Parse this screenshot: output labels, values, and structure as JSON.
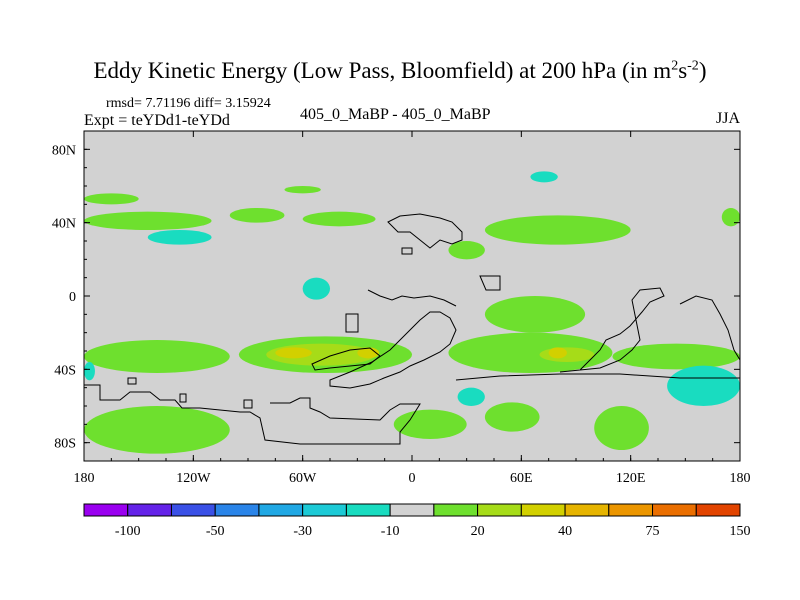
{
  "header": {
    "title_main": "Eddy Kinetic Energy (Low Pass, Bloomfield) at 200 hPa (in m",
    "title_sup1": "2",
    "title_mid": "s",
    "title_sup2": "-2",
    "title_end": ")",
    "rmsd_line": "rmsd= 7.71196 diff= 3.15924",
    "expt_line": "Expt = teYDd1-teYDd",
    "center_label": "405_0_MaBP - 405_0_MaBP",
    "season": "JJA"
  },
  "chart_data": {
    "type": "heatmap",
    "projection": "cylindrical-equidistant",
    "xlim": [
      -180,
      180
    ],
    "ylim": [
      -90,
      90
    ],
    "x_ticks": [
      {
        "value": -180,
        "label": "180"
      },
      {
        "value": -120,
        "label": "120W"
      },
      {
        "value": -60,
        "label": "60W"
      },
      {
        "value": 0,
        "label": "0"
      },
      {
        "value": 60,
        "label": "60E"
      },
      {
        "value": 120,
        "label": "120E"
      },
      {
        "value": 180,
        "label": "180"
      }
    ],
    "y_ticks": [
      {
        "value": 80,
        "label": "80N"
      },
      {
        "value": 40,
        "label": "40N"
      },
      {
        "value": 0,
        "label": "0"
      },
      {
        "value": -40,
        "label": "40S"
      },
      {
        "value": -80,
        "label": "80S"
      }
    ],
    "background_color": "#d2d2d2",
    "colorbar": {
      "colors": [
        "#9a00f0",
        "#6422e8",
        "#3a50e6",
        "#2a84e8",
        "#20a8e4",
        "#1ccad6",
        "#19dcc0",
        "#d2d2d2",
        "#6ee02e",
        "#a6dc18",
        "#d2d000",
        "#e6b400",
        "#ec9600",
        "#ea6e00",
        "#e24400"
      ],
      "labels": [
        {
          "label": "-100",
          "after_box": 1
        },
        {
          "label": "-50",
          "after_box": 3
        },
        {
          "label": "-30",
          "after_box": 5
        },
        {
          "label": "-10",
          "after_box": 7
        },
        {
          "label": "20",
          "after_box": 9
        },
        {
          "label": "40",
          "after_box": 11
        },
        {
          "label": "75",
          "after_box": 13
        },
        {
          "label": "150",
          "after_box": 15
        }
      ]
    },
    "anomaly_regions": [
      {
        "sign": "positive",
        "level": "green",
        "color": "#6ee02e",
        "lon": [
          -180,
          -110
        ],
        "lat": [
          36,
          46
        ]
      },
      {
        "sign": "positive",
        "level": "green",
        "color": "#6ee02e",
        "lon": [
          -100,
          -70
        ],
        "lat": [
          40,
          48
        ]
      },
      {
        "sign": "positive",
        "level": "green",
        "color": "#6ee02e",
        "lon": [
          -60,
          -20
        ],
        "lat": [
          38,
          46
        ]
      },
      {
        "sign": "positive",
        "level": "green",
        "color": "#6ee02e",
        "lon": [
          20,
          40
        ],
        "lat": [
          20,
          30
        ]
      },
      {
        "sign": "positive",
        "level": "green",
        "color": "#6ee02e",
        "lon": [
          40,
          120
        ],
        "lat": [
          28,
          44
        ]
      },
      {
        "sign": "positive",
        "level": "green",
        "color": "#6ee02e",
        "lon": [
          170,
          180
        ],
        "lat": [
          38,
          48
        ]
      },
      {
        "sign": "positive",
        "level": "green",
        "color": "#6ee02e",
        "lon": [
          -180,
          -150
        ],
        "lat": [
          50,
          56
        ]
      },
      {
        "sign": "positive",
        "level": "green",
        "color": "#6ee02e",
        "lon": [
          -70,
          -50
        ],
        "lat": [
          56,
          60
        ]
      },
      {
        "sign": "negative",
        "level": "teal",
        "color": "#19dcc0",
        "lon": [
          -145,
          -110
        ],
        "lat": [
          28,
          36
        ]
      },
      {
        "sign": "negative",
        "level": "teal",
        "color": "#19dcc0",
        "lon": [
          65,
          80
        ],
        "lat": [
          62,
          68
        ]
      },
      {
        "sign": "negative",
        "level": "teal",
        "color": "#19dcc0",
        "lon": [
          -60,
          -45
        ],
        "lat": [
          -2,
          10
        ]
      },
      {
        "sign": "positive",
        "level": "green",
        "color": "#6ee02e",
        "lon": [
          40,
          95
        ],
        "lat": [
          -20,
          0
        ]
      },
      {
        "sign": "positive",
        "level": "green",
        "color": "#6ee02e",
        "lon": [
          -180,
          -100
        ],
        "lat": [
          -42,
          -24
        ]
      },
      {
        "sign": "positive",
        "level": "green",
        "color": "#6ee02e",
        "lon": [
          -95,
          0
        ],
        "lat": [
          -42,
          -22
        ]
      },
      {
        "sign": "positive",
        "level": "green",
        "color": "#6ee02e",
        "lon": [
          20,
          110
        ],
        "lat": [
          -42,
          -20
        ]
      },
      {
        "sign": "positive",
        "level": "green",
        "color": "#6ee02e",
        "lon": [
          110,
          180
        ],
        "lat": [
          -40,
          -26
        ]
      },
      {
        "sign": "positive",
        "level": "light-green",
        "color": "#a6dc18",
        "lon": [
          -80,
          -20
        ],
        "lat": [
          -38,
          -26
        ]
      },
      {
        "sign": "positive",
        "level": "light-green",
        "color": "#a6dc18",
        "lon": [
          70,
          100
        ],
        "lat": [
          -36,
          -28
        ]
      },
      {
        "sign": "positive",
        "level": "yellow",
        "color": "#d2d000",
        "lon": [
          -75,
          -55
        ],
        "lat": [
          -34,
          -28
        ]
      },
      {
        "sign": "positive",
        "level": "yellow",
        "color": "#d2d000",
        "lon": [
          -30,
          -18
        ],
        "lat": [
          -34,
          -28
        ]
      },
      {
        "sign": "positive",
        "level": "yellow",
        "color": "#d2d000",
        "lon": [
          75,
          85
        ],
        "lat": [
          -34,
          -28
        ]
      },
      {
        "sign": "negative",
        "level": "teal",
        "color": "#19dcc0",
        "lon": [
          -180,
          -174
        ],
        "lat": [
          -46,
          -36
        ]
      },
      {
        "sign": "negative",
        "level": "teal",
        "color": "#19dcc0",
        "lon": [
          140,
          180
        ],
        "lat": [
          -60,
          -38
        ]
      },
      {
        "sign": "negative",
        "level": "teal",
        "color": "#19dcc0",
        "lon": [
          25,
          40
        ],
        "lat": [
          -60,
          -50
        ]
      },
      {
        "sign": "positive",
        "level": "green",
        "color": "#6ee02e",
        "lon": [
          -180,
          -100
        ],
        "lat": [
          -86,
          -60
        ]
      },
      {
        "sign": "positive",
        "level": "green",
        "color": "#6ee02e",
        "lon": [
          -10,
          30
        ],
        "lat": [
          -78,
          -62
        ]
      },
      {
        "sign": "positive",
        "level": "green",
        "color": "#6ee02e",
        "lon": [
          40,
          70
        ],
        "lat": [
          -74,
          -58
        ]
      },
      {
        "sign": "positive",
        "level": "green",
        "color": "#6ee02e",
        "lon": [
          100,
          130
        ],
        "lat": [
          -84,
          -60
        ]
      }
    ]
  }
}
